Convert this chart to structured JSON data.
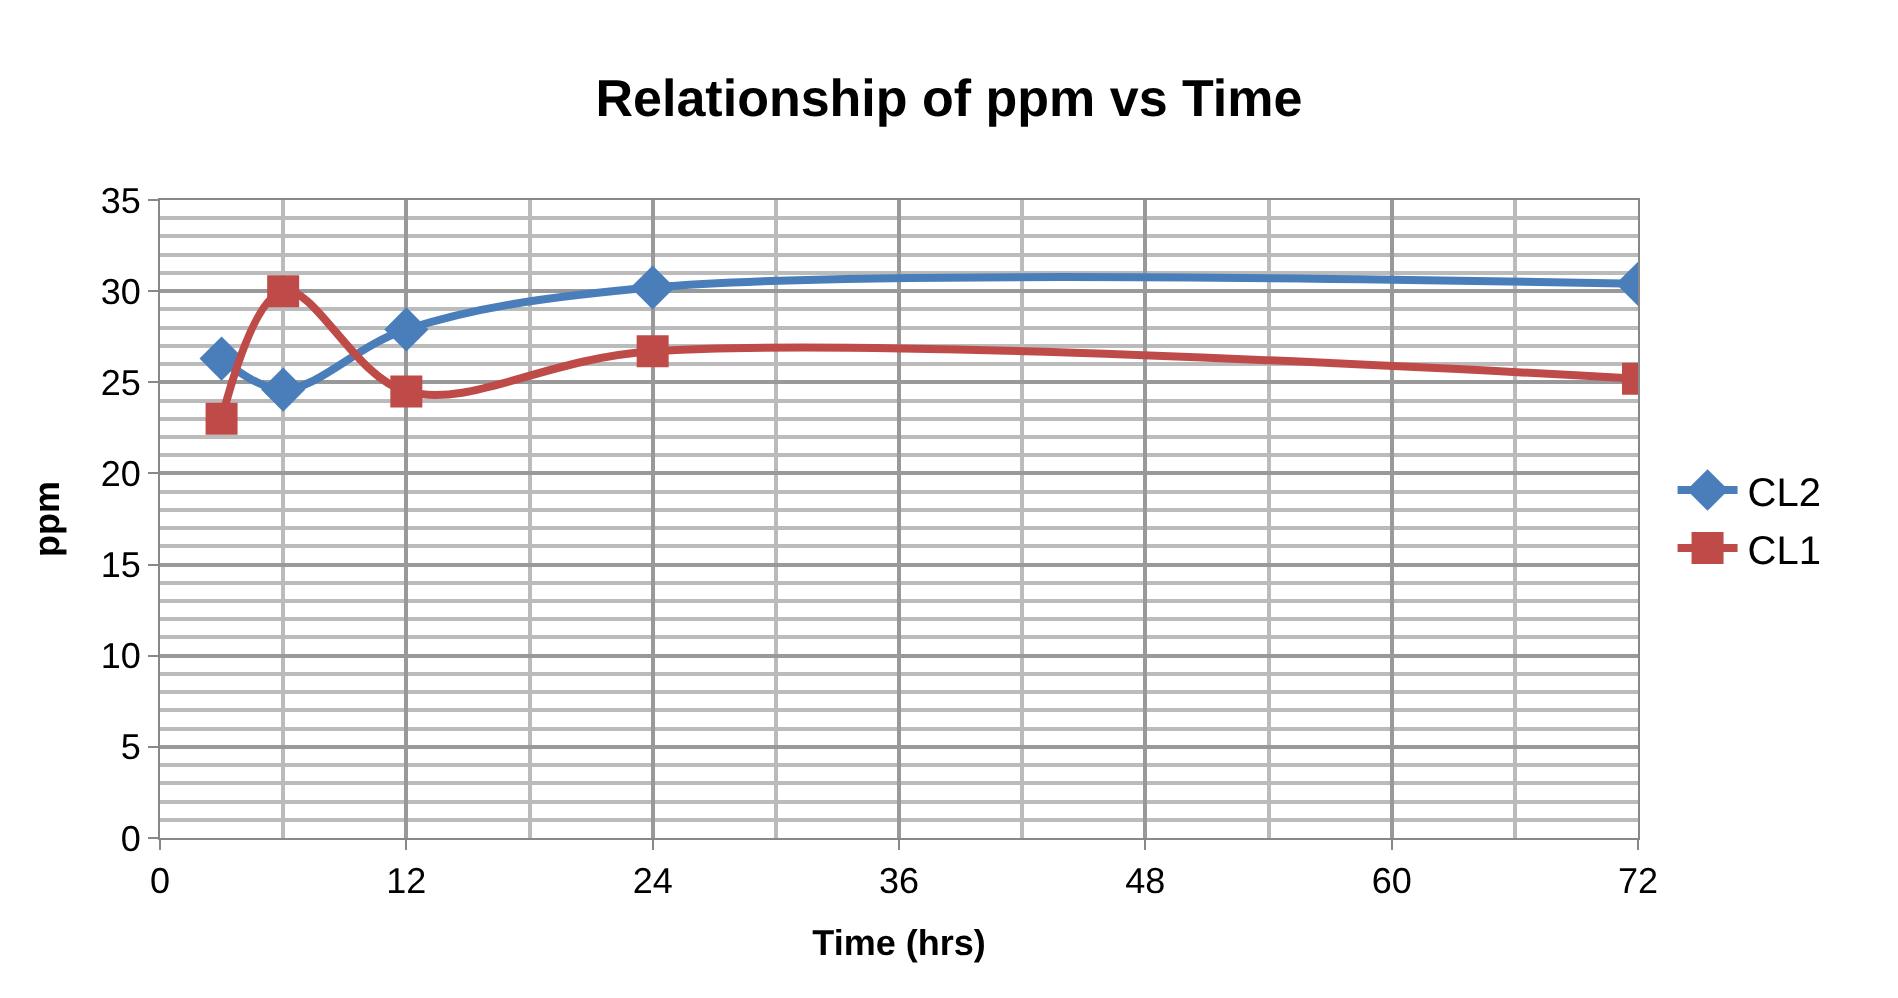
{
  "chart_data": {
    "type": "line",
    "title": "Relationship of ppm vs Time",
    "xlabel": "Time (hrs)",
    "ylabel": "ppm",
    "x": [
      3,
      6,
      12,
      24,
      72
    ],
    "series": [
      {
        "name": "CL2",
        "color": "#4a7ebb",
        "values": [
          26.3,
          24.6,
          27.9,
          30.2,
          30.4
        ],
        "marker": "diamond"
      },
      {
        "name": "CL1",
        "color": "#be4b48",
        "values": [
          23.0,
          30.0,
          24.5,
          26.7,
          25.2
        ],
        "marker": "square"
      }
    ],
    "xlim": [
      0,
      72
    ],
    "xticks": [
      0,
      12,
      24,
      36,
      48,
      60,
      72
    ],
    "ylim": [
      0,
      35
    ],
    "yticks": [
      0,
      5,
      10,
      15,
      20,
      25,
      30,
      35
    ],
    "grid": true,
    "legend": "right",
    "line_style": "solid"
  }
}
